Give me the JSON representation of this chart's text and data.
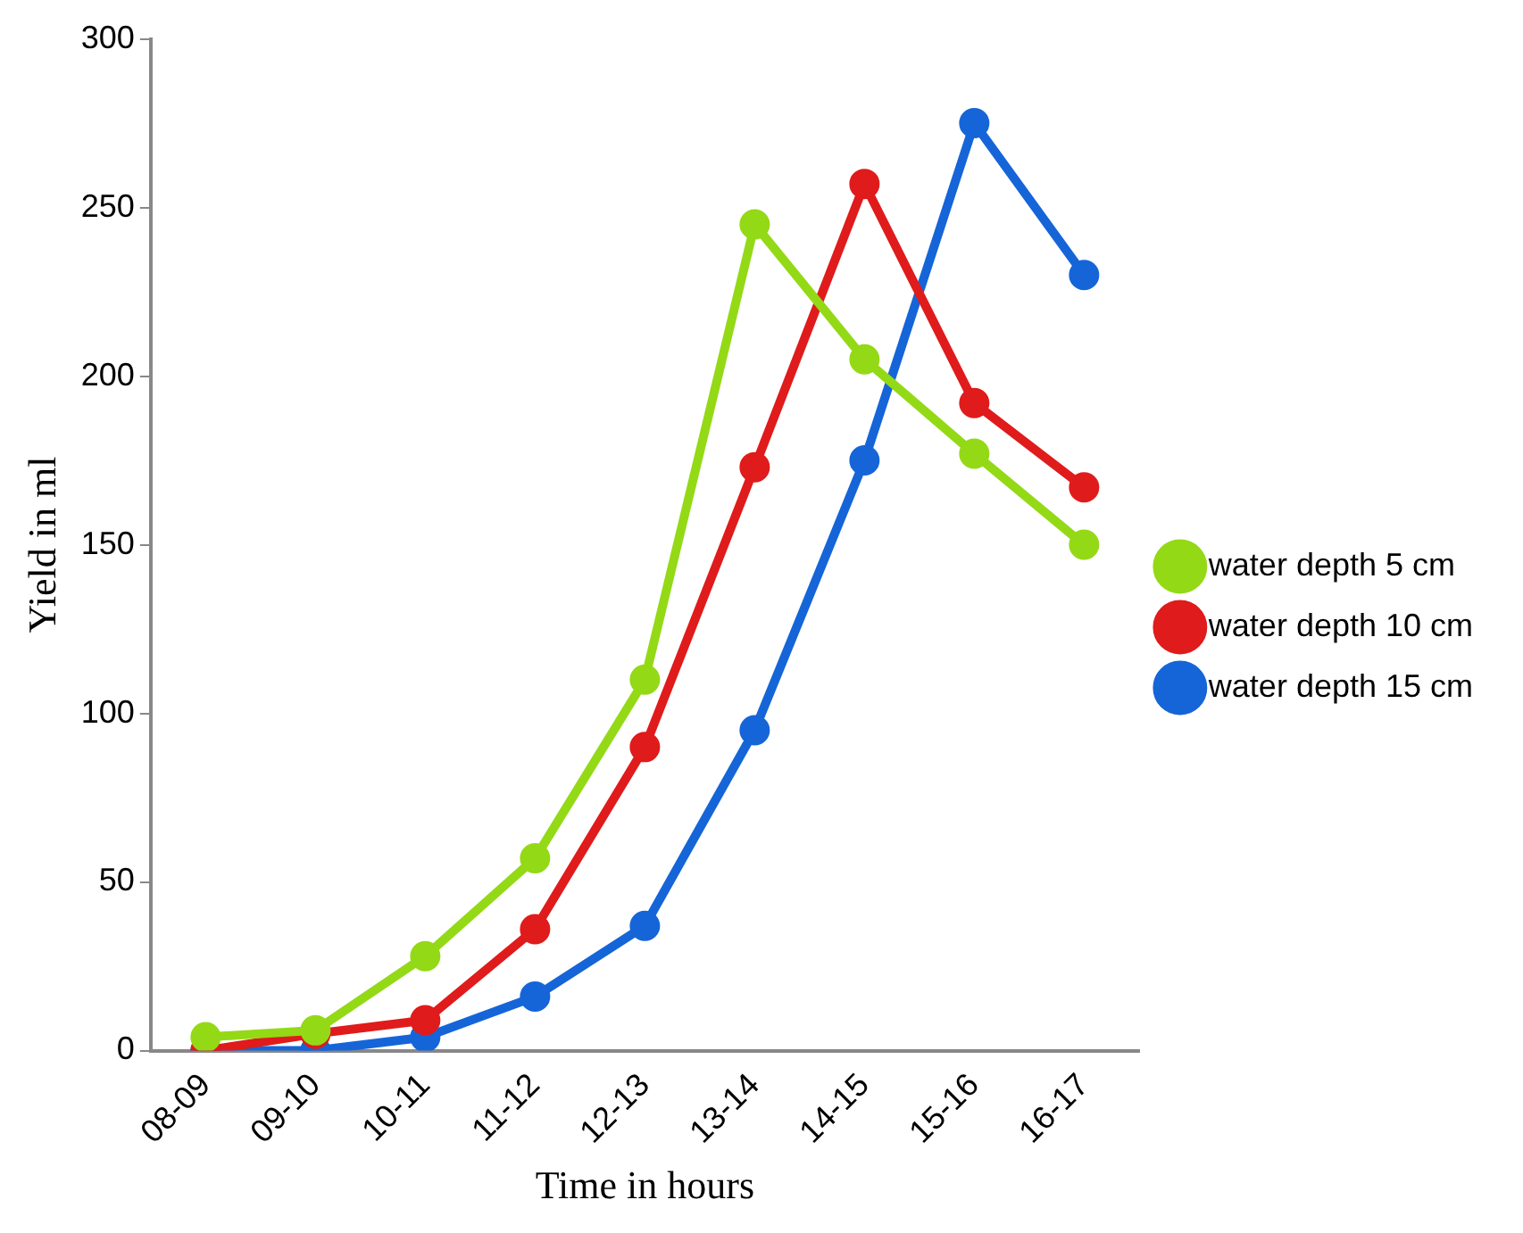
{
  "chart_data": {
    "type": "line",
    "xlabel": "Time in hours",
    "ylabel": "Yield in ml",
    "categories": [
      "08-09",
      "09-10",
      "10-11",
      "11-12",
      "12-13",
      "13-14",
      "14-15",
      "15-16",
      "16-17"
    ],
    "series": [
      {
        "name": "water depth 15 cm",
        "color": "#1565d8",
        "values": [
          0,
          0,
          4,
          16,
          37,
          95,
          175,
          275,
          230
        ]
      },
      {
        "name": "water depth 10 cm",
        "color": "#e01b1b",
        "values": [
          0,
          5,
          9,
          36,
          90,
          173,
          257,
          192,
          167
        ]
      },
      {
        "name": "water depth 5 cm",
        "color": "#94d916",
        "values": [
          4,
          6,
          28,
          57,
          110,
          245,
          205,
          177,
          150
        ]
      }
    ],
    "ylim": [
      0,
      300
    ],
    "yticks": [
      0,
      50,
      100,
      150,
      200,
      250,
      300
    ],
    "grid": false,
    "legend": "right",
    "marker": "circle",
    "line_style": "solid"
  }
}
